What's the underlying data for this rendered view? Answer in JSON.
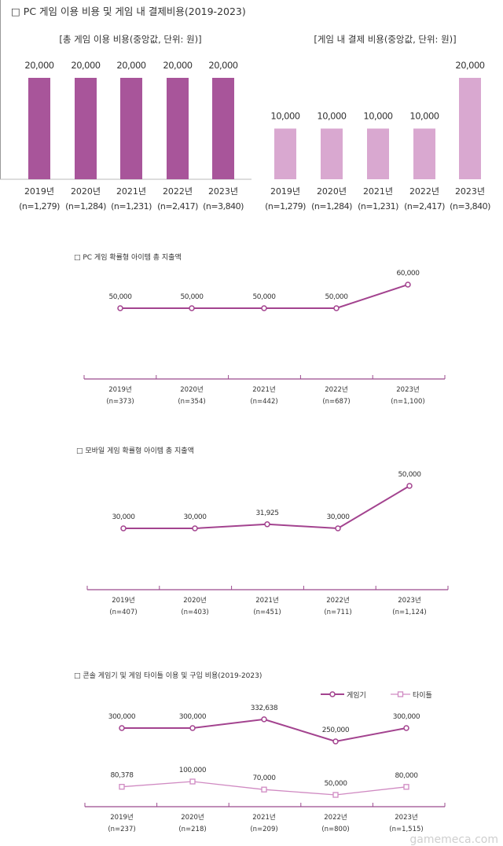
{
  "watermark": "gamemeca.com",
  "colors": {
    "dark": "#a8559a",
    "light": "#d9a8d0",
    "line": "#a3438f",
    "line_light": "#d08ac2",
    "axis": "#9b4b8e"
  },
  "chart_data": [
    {
      "type": "bar",
      "title": "□ PC 게임 이용 비용 및 게임 내 결제비용(2019-2023)",
      "subtitle": "[총 게임 이용 비용(중앙값, 단위: 원)]",
      "categories": [
        "2019년",
        "2020년",
        "2021년",
        "2022년",
        "2023년"
      ],
      "n_labels": [
        "(n=1,279)",
        "(n=1,284)",
        "(n=1,231)",
        "(n=2,417)",
        "(n=3,840)"
      ],
      "values": [
        20000,
        20000,
        20000,
        20000,
        20000
      ],
      "data_labels": [
        "20,000",
        "20,000",
        "20,000",
        "20,000",
        "20,000"
      ]
    },
    {
      "type": "bar",
      "subtitle": "[게임 내 결제 비용(중앙값, 단위: 원)]",
      "categories": [
        "2019년",
        "2020년",
        "2021년",
        "2022년",
        "2023년"
      ],
      "n_labels": [
        "(n=1,279)",
        "(n=1,284)",
        "(n=1,231)",
        "(n=2,417)",
        "(n=3,840)"
      ],
      "values": [
        10000,
        10000,
        10000,
        10000,
        20000
      ],
      "data_labels": [
        "10,000",
        "10,000",
        "10,000",
        "10,000",
        "20,000"
      ]
    },
    {
      "type": "line",
      "title": "□ PC 게임 확률형 아이템 총 지출액",
      "categories": [
        "2019년",
        "2020년",
        "2021년",
        "2022년",
        "2023년"
      ],
      "n_labels": [
        "(n=373)",
        "(n=354)",
        "(n=442)",
        "(n=687)",
        "(n=1,100)"
      ],
      "values": [
        50000,
        50000,
        50000,
        50000,
        60000
      ],
      "data_labels": [
        "50,000",
        "50,000",
        "50,000",
        "50,000",
        "60,000"
      ]
    },
    {
      "type": "line",
      "title": "□ 모바일 게임 확률형 아이템 총 지출액",
      "categories": [
        "2019년",
        "2020년",
        "2021년",
        "2022년",
        "2023년"
      ],
      "n_labels": [
        "(n=407)",
        "(n=403)",
        "(n=451)",
        "(n=711)",
        "(n=1,124)"
      ],
      "values": [
        30000,
        30000,
        31925,
        30000,
        50000
      ],
      "data_labels": [
        "30,000",
        "30,000",
        "31,925",
        "30,000",
        "50,000"
      ]
    },
    {
      "type": "line",
      "title": "□ 콘솔 게임기 및 게임 타이틀 이용 및 구입 비용(2019-2023)",
      "categories": [
        "2019년",
        "2020년",
        "2021년",
        "2022년",
        "2023년"
      ],
      "n_labels": [
        "(n=237)",
        "(n=218)",
        "(n=209)",
        "(n=800)",
        "(n=1,515)"
      ],
      "legend": "top-right",
      "series": [
        {
          "name": "게임기",
          "values": [
            300000,
            300000,
            332638,
            250000,
            300000
          ],
          "data_labels": [
            "300,000",
            "300,000",
            "332,638",
            "250,000",
            "300,000"
          ]
        },
        {
          "name": "타이틀",
          "values": [
            80378,
            100000,
            70000,
            50000,
            80000
          ],
          "data_labels": [
            "80,378",
            "100,000",
            "70,000",
            "50,000",
            "80,000"
          ]
        }
      ]
    }
  ]
}
